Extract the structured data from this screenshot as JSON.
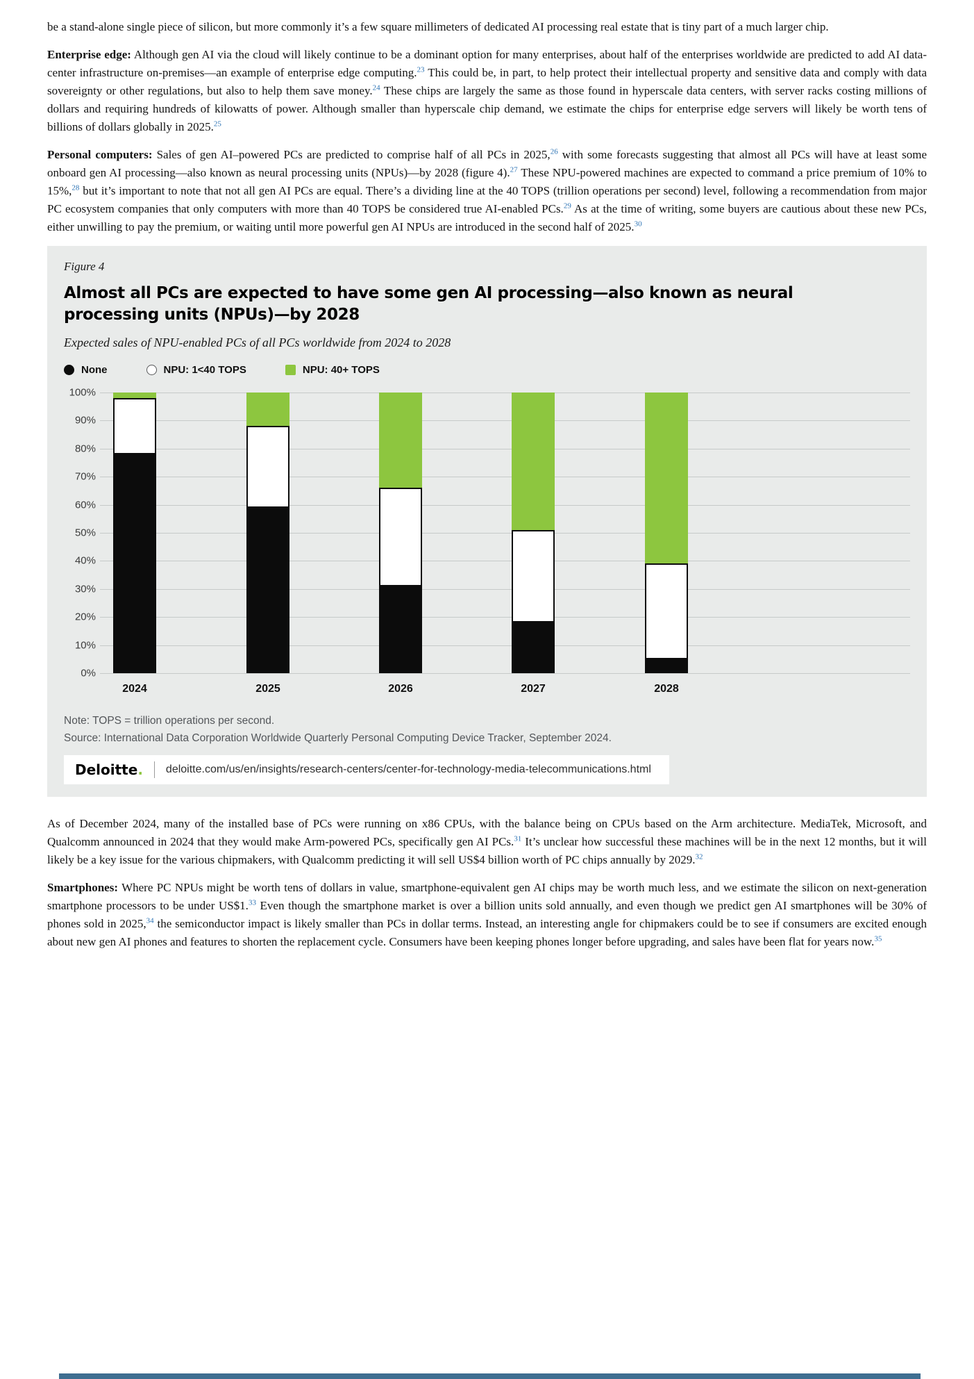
{
  "colors": {
    "figure_bg": "#e9ebea",
    "green": "#8dc63f",
    "series_black": "#0c0c0c",
    "footnote": "#2e74b5",
    "gridline": "#c6cac9",
    "note_text": "#53565a",
    "footer_bar": "#3f6e91"
  },
  "body": {
    "paragraphs_top": [
      {
        "runs": [
          {
            "t": "be a stand-alone single piece of silicon, but more commonly it’s a few square millimeters of dedicated AI processing real estate that is tiny part of a much larger chip.",
            "s": ""
          }
        ]
      },
      {
        "runs": [
          {
            "t": "Enterprise edge:",
            "s": "b"
          },
          {
            "t": " Although gen AI via the cloud will likely continue to be a dominant option for many enterprises, about half of the enterprises worldwide are predicted to add AI data-center infrastructure on-premises—an example of enterprise edge computing.",
            "s": ""
          },
          {
            "t": "23",
            "s": "sup"
          },
          {
            "t": " This could be, in part, to help protect their intellectual property and sensitive data and comply with data sovereignty or other regulations, but also to help them save money.",
            "s": ""
          },
          {
            "t": "24",
            "s": "sup"
          },
          {
            "t": " These chips are largely the same as those found in hyperscale data centers, with server racks costing millions of dollars and requiring hundreds of kilowatts of power. Although smaller than hyperscale chip demand, we estimate the chips for enterprise edge servers will likely be worth tens of billions of dollars globally in 2025.",
            "s": ""
          },
          {
            "t": "25",
            "s": "sup"
          }
        ]
      },
      {
        "runs": [
          {
            "t": "Personal computers:",
            "s": "b"
          },
          {
            "t": " Sales of gen AI–powered PCs are predicted to comprise half of all PCs in 2025,",
            "s": ""
          },
          {
            "t": "26",
            "s": "sup"
          },
          {
            "t": " with some forecasts suggesting that almost all PCs will have at least some onboard gen AI processing—also known as neural processing units (NPUs)—by 2028 (figure 4).",
            "s": ""
          },
          {
            "t": "27",
            "s": "sup"
          },
          {
            "t": " These NPU-powered machines are expected to command a price premium of 10% to 15%,",
            "s": ""
          },
          {
            "t": "28",
            "s": "sup"
          },
          {
            "t": " but it’s important to note that not all gen AI PCs are equal. There’s a dividing line at the 40 TOPS (trillion operations per second) level, following a recommendation from major PC ecosystem companies that only computers with more than 40 TOPS be considered true AI-enabled PCs.",
            "s": ""
          },
          {
            "t": "29",
            "s": "sup"
          },
          {
            "t": " As at the time of writing, some buyers are cautious about these new PCs, either unwilling to pay the premium, or waiting until more powerful gen AI NPUs are introduced in the second half of 2025.",
            "s": ""
          },
          {
            "t": "30",
            "s": "sup"
          }
        ]
      }
    ],
    "paragraphs_bottom": [
      {
        "runs": [
          {
            "t": "As of December 2024, many of the installed base of PCs were running on x86 CPUs, with the balance being on CPUs based on the Arm architecture. MediaTek, Microsoft, and Qualcomm announced in 2024 that they would make Arm-powered PCs, specifically gen AI PCs.",
            "s": ""
          },
          {
            "t": "31",
            "s": "sup"
          },
          {
            "t": " It’s unclear how successful these machines will be in the next 12 months, but it will likely be a key issue for the various chipmakers, with Qualcomm predicting it will sell US$4 billion worth of PC chips annually by 2029.",
            "s": ""
          },
          {
            "t": "32",
            "s": "sup"
          }
        ]
      },
      {
        "runs": [
          {
            "t": "Smartphones:",
            "s": "b"
          },
          {
            "t": " Where PC NPUs might be worth tens of dollars in value, smartphone-equivalent gen AI chips may be worth much less, and we estimate the silicon on next-generation smartphone processors to be under US$1.",
            "s": ""
          },
          {
            "t": "33",
            "s": "sup"
          },
          {
            "t": " Even though the smartphone market is over a billion units sold annually, and even though we predict gen AI smartphones will be 30% of phones sold in 2025,",
            "s": ""
          },
          {
            "t": "34",
            "s": "sup"
          },
          {
            "t": " the semiconductor impact is likely smaller than PCs in dollar terms. Instead, an interesting angle for chipmakers could be to see if consumers are excited enough about new gen AI phones and features to shorten the replacement cycle. Consumers have been keeping phones longer before upgrading, and sales have been flat for years now.",
            "s": ""
          },
          {
            "t": "35",
            "s": "sup"
          }
        ]
      }
    ]
  },
  "figure": {
    "label": "Figure 4",
    "title": "Almost all PCs are expected to have some gen AI processing—also known as neural processing units (NPUs)—by 2028",
    "subtitle": "Expected sales of NPU-enabled PCs of all PCs worldwide from 2024 to 2028",
    "note": "Note: TOPS = trillion operations per second.",
    "source": "Source: International Data Corporation Worldwide Quarterly Personal Computing Device Tracker, September 2024.",
    "brand": {
      "name": "Deloitte",
      "dot": ".",
      "url": "deloitte.com/us/en/insights/research-centers/center-for-technology-media-telecommunications.html"
    }
  },
  "chart_data": {
    "type": "bar",
    "stacked": true,
    "title": "Almost all PCs are expected to have some gen AI processing—also known as neural processing units (NPUs)—by 2028",
    "subtitle": "Expected sales of NPU-enabled PCs of all PCs worldwide from 2024 to 2028",
    "categories": [
      "2024",
      "2025",
      "2026",
      "2027",
      "2028"
    ],
    "series": [
      {
        "name": "None",
        "color": "#0c0c0c",
        "marker": "circle-filled",
        "values": [
          78,
          59,
          31,
          18,
          5
        ]
      },
      {
        "name": "NPU: 1<40 TOPS",
        "color": "#ffffff",
        "outline": "#0d0d0d",
        "marker": "circle-outline",
        "values": [
          20,
          29,
          35,
          33,
          34
        ]
      },
      {
        "name": "NPU: 40+ TOPS",
        "color": "#8dc63f",
        "marker": "square-filled",
        "values": [
          2,
          12,
          34,
          49,
          61
        ]
      }
    ],
    "xlabel": "",
    "ylabel": "",
    "ylim": [
      0,
      100
    ],
    "yticks": [
      "100%",
      "90%",
      "80%",
      "70%",
      "60%",
      "50%",
      "40%",
      "30%",
      "20%",
      "10%",
      "0%"
    ],
    "grid": true,
    "legend_position": "top"
  }
}
